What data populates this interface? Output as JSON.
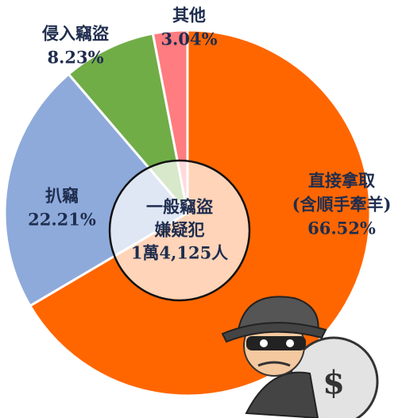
{
  "chart_data": {
    "type": "pie",
    "categories": [
      [
        "直接拿取",
        "(含順手牽羊)"
      ],
      [
        "扒竊"
      ],
      [
        "侵入竊盜"
      ],
      [
        "其他"
      ]
    ],
    "values": [
      66.52,
      22.21,
      8.23,
      3.04
    ],
    "value_labels": [
      "66.52%",
      "22.21%",
      "8.23%",
      "3.04%"
    ],
    "colors": [
      "#ff6600",
      "#8eaadb",
      "#70ad47",
      "#ff7c80"
    ],
    "center_label": [
      "一般竊盜",
      "嫌疑犯",
      "1萬4,125人"
    ]
  }
}
